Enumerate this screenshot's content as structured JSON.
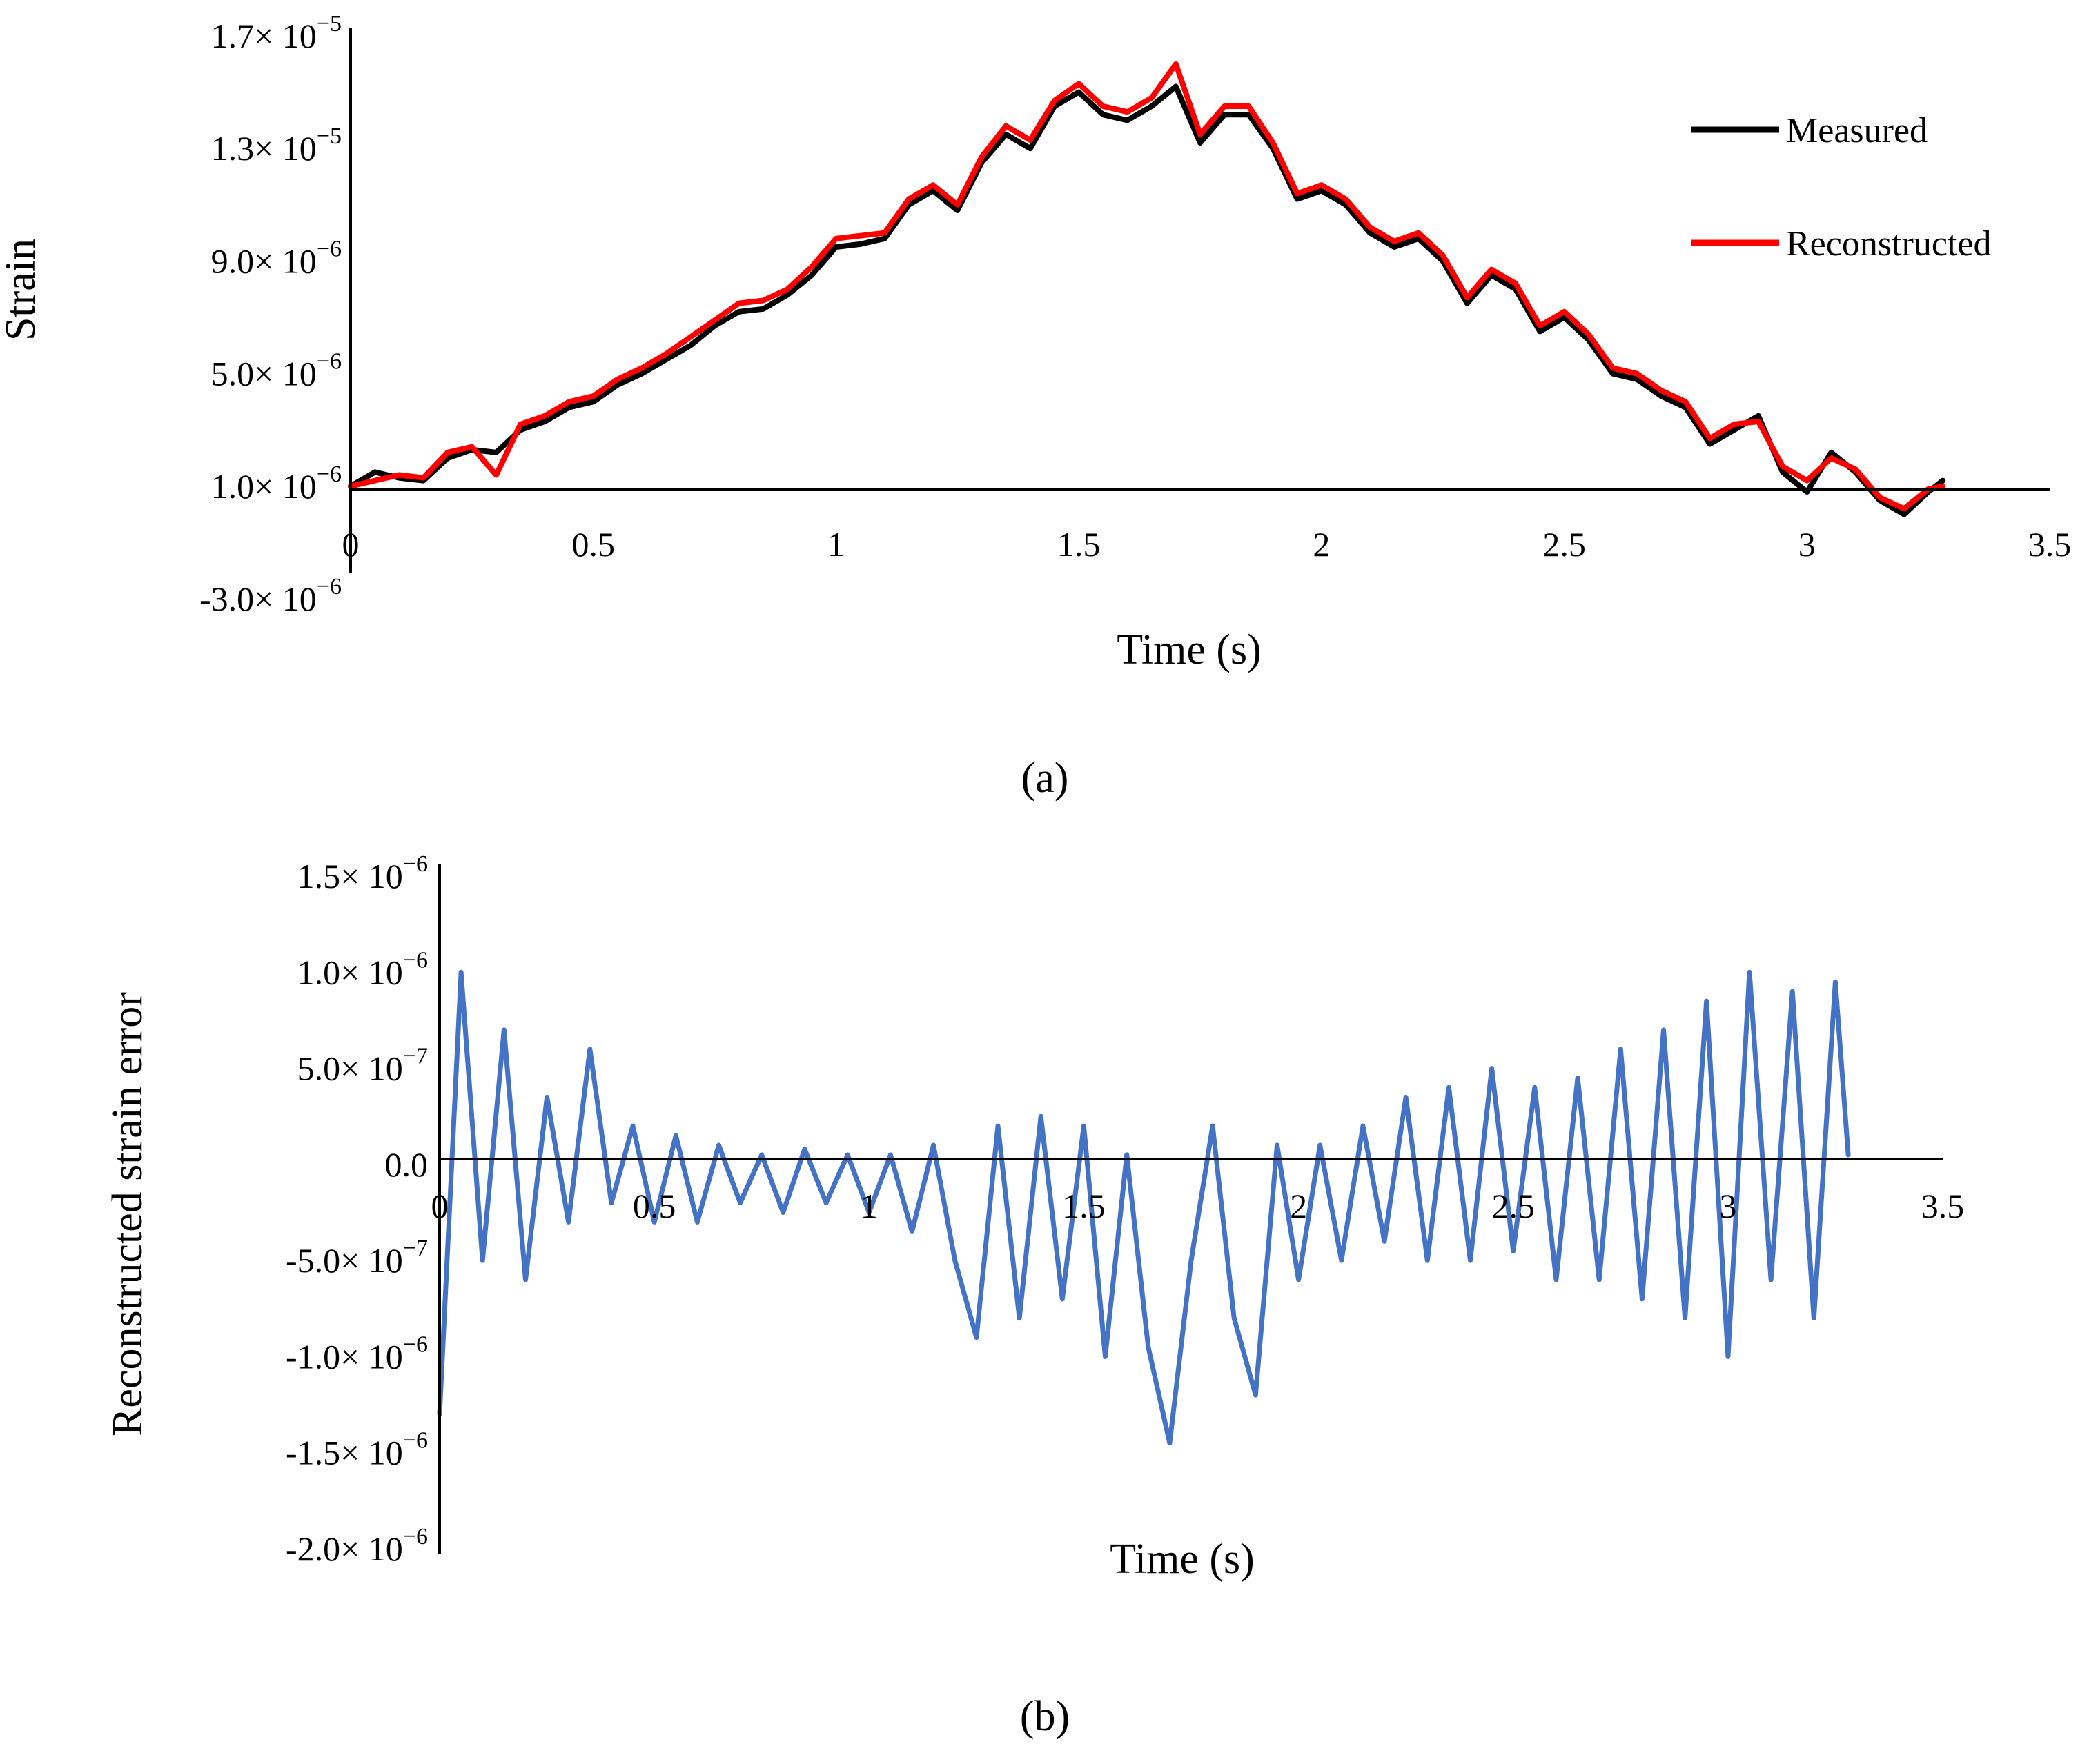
{
  "chart_data": [
    {
      "id": "a",
      "type": "line",
      "caption": "(a)",
      "title": "",
      "xlabel": "Time (s)",
      "ylabel": "Strain",
      "xlim": [
        0,
        3.5
      ],
      "ylim": [
        -3e-06,
        1.7e-05
      ],
      "x_ticks": [
        "0",
        "0.5",
        "1",
        "1.5",
        "2",
        "2.5",
        "3",
        "3.5"
      ],
      "y_ticks": [
        {
          "value": 1.7e-05,
          "mant": "1.7",
          "exp": "−5"
        },
        {
          "value": 1.3e-05,
          "mant": "1.3",
          "exp": "−5"
        },
        {
          "value": 9e-06,
          "mant": "9.0",
          "exp": "−6"
        },
        {
          "value": 5e-06,
          "mant": "5.0",
          "exp": "−6"
        },
        {
          "value": 1e-06,
          "mant": "1.0",
          "exp": "−6"
        },
        {
          "value": -3e-06,
          "mant": "-3.0",
          "exp": "−6"
        }
      ],
      "legend": {
        "position": "top-right",
        "entries": [
          "Measured",
          "Reconstructed"
        ]
      },
      "x": [
        0,
        0.05,
        0.1,
        0.15,
        0.2,
        0.25,
        0.3,
        0.35,
        0.4,
        0.45,
        0.5,
        0.55,
        0.6,
        0.65,
        0.7,
        0.75,
        0.8,
        0.85,
        0.9,
        0.95,
        1.0,
        1.05,
        1.1,
        1.15,
        1.2,
        1.25,
        1.3,
        1.35,
        1.4,
        1.45,
        1.5,
        1.55,
        1.6,
        1.65,
        1.7,
        1.75,
        1.8,
        1.85,
        1.9,
        1.95,
        2.0,
        2.05,
        2.1,
        2.15,
        2.2,
        2.25,
        2.3,
        2.35,
        2.4,
        2.45,
        2.5,
        2.55,
        2.6,
        2.65,
        2.7,
        2.75,
        2.8,
        2.85,
        2.9,
        2.95,
        3.0,
        3.05,
        3.1,
        3.15,
        3.2,
        3.25,
        3.28
      ],
      "series": [
        {
          "name": "Measured",
          "color": "#000000",
          "values": [
            1e-06,
            1.5e-06,
            1.3e-06,
            1.2e-06,
            2e-06,
            2.3e-06,
            2.2e-06,
            3e-06,
            3.3e-06,
            3.8e-06,
            4e-06,
            4.6e-06,
            5e-06,
            5.5e-06,
            6e-06,
            6.7e-06,
            7.2e-06,
            7.3e-06,
            7.8e-06,
            8.5e-06,
            9.5e-06,
            9.6e-06,
            9.8e-06,
            1.1e-05,
            1.15e-05,
            1.08e-05,
            1.25e-05,
            1.35e-05,
            1.3e-05,
            1.45e-05,
            1.5e-05,
            1.42e-05,
            1.4e-05,
            1.45e-05,
            1.52e-05,
            1.32e-05,
            1.42e-05,
            1.42e-05,
            1.3e-05,
            1.12e-05,
            1.15e-05,
            1.1e-05,
            1e-05,
            9.5e-06,
            9.8e-06,
            9e-06,
            7.5e-06,
            8.5e-06,
            8e-06,
            6.5e-06,
            7e-06,
            6.2e-06,
            5e-06,
            4.8e-06,
            4.2e-06,
            3.8e-06,
            2.5e-06,
            3e-06,
            3.5e-06,
            1.5e-06,
            8e-07,
            2.2e-06,
            1.5e-06,
            5e-07,
            0.0,
            8e-07,
            1.2e-06
          ]
        },
        {
          "name": "Reconstructed",
          "color": "#ff0000",
          "values": [
            1e-06,
            1.2e-06,
            1.4e-06,
            1.3e-06,
            2.2e-06,
            2.4e-06,
            1.4e-06,
            3.2e-06,
            3.5e-06,
            4e-06,
            4.2e-06,
            4.8e-06,
            5.2e-06,
            5.7e-06,
            6.3e-06,
            6.9e-06,
            7.5e-06,
            7.6e-06,
            8e-06,
            8.8e-06,
            9.8e-06,
            9.9e-06,
            1e-05,
            1.12e-05,
            1.17e-05,
            1.1e-05,
            1.27e-05,
            1.38e-05,
            1.33e-05,
            1.47e-05,
            1.53e-05,
            1.45e-05,
            1.43e-05,
            1.48e-05,
            1.6e-05,
            1.35e-05,
            1.45e-05,
            1.45e-05,
            1.32e-05,
            1.14e-05,
            1.17e-05,
            1.12e-05,
            1.02e-05,
            9.7e-06,
            1e-05,
            9.2e-06,
            7.7e-06,
            8.7e-06,
            8.2e-06,
            6.7e-06,
            7.2e-06,
            6.4e-06,
            5.2e-06,
            5e-06,
            4.4e-06,
            4e-06,
            2.7e-06,
            3.2e-06,
            3.3e-06,
            1.7e-06,
            1.2e-06,
            2e-06,
            1.6e-06,
            6e-07,
            2e-07,
            9e-07,
            1e-06
          ]
        }
      ]
    },
    {
      "id": "b",
      "type": "line",
      "caption": "(b)",
      "title": "",
      "xlabel": "Time (s)",
      "ylabel": "Reconstructed strain error",
      "xlim": [
        0,
        3.5
      ],
      "ylim": [
        -2e-06,
        1.5e-06
      ],
      "x_ticks": [
        "0",
        "0.5",
        "1",
        "1.5",
        "2",
        "2.5",
        "3",
        "3.5"
      ],
      "y_ticks": [
        {
          "value": 1.5e-06,
          "mant": "1.5",
          "exp": "−6"
        },
        {
          "value": 1e-06,
          "mant": "1.0",
          "exp": "−6"
        },
        {
          "value": 5e-07,
          "mant": "5.0",
          "exp": "−7"
        },
        {
          "value": 0.0,
          "mant": "0.0",
          "exp": ""
        },
        {
          "value": -5e-07,
          "mant": "-5.0",
          "exp": "−7"
        },
        {
          "value": -1e-06,
          "mant": "-1.0",
          "exp": "−6"
        },
        {
          "value": -1.5e-06,
          "mant": "-1.5",
          "exp": "−6"
        },
        {
          "value": -2e-06,
          "mant": "-2.0",
          "exp": "−6"
        }
      ],
      "x": [
        0,
        0.05,
        0.1,
        0.15,
        0.2,
        0.25,
        0.3,
        0.35,
        0.4,
        0.45,
        0.5,
        0.55,
        0.6,
        0.65,
        0.7,
        0.75,
        0.8,
        0.85,
        0.9,
        0.95,
        1.0,
        1.05,
        1.1,
        1.15,
        1.2,
        1.25,
        1.3,
        1.35,
        1.4,
        1.45,
        1.5,
        1.55,
        1.6,
        1.65,
        1.7,
        1.75,
        1.8,
        1.85,
        1.9,
        1.95,
        2.0,
        2.05,
        2.1,
        2.15,
        2.2,
        2.25,
        2.3,
        2.35,
        2.4,
        2.45,
        2.5,
        2.55,
        2.6,
        2.65,
        2.7,
        2.75,
        2.8,
        2.85,
        2.9,
        2.95,
        3.0,
        3.05,
        3.1,
        3.15,
        3.2,
        3.25,
        3.28
      ],
      "series": [
        {
          "name": "Reconstructed strain error",
          "color": "#4472c4",
          "values": [
            -1.3e-06,
            1e-06,
            -5e-07,
            7e-07,
            -6e-07,
            3.5e-07,
            -3e-07,
            6e-07,
            -2e-07,
            2e-07,
            -3e-07,
            1.5e-07,
            -3e-07,
            1e-07,
            -2e-07,
            5e-08,
            -2.5e-07,
            8e-08,
            -2e-07,
            5e-08,
            -2.5e-07,
            5e-08,
            -3.5e-07,
            1e-07,
            -5e-07,
            -9e-07,
            2e-07,
            -8e-07,
            2.5e-07,
            -7e-07,
            2e-07,
            -1e-06,
            5e-08,
            -9.5e-07,
            -1.45e-06,
            -5e-07,
            2e-07,
            -8e-07,
            -1.2e-06,
            1e-07,
            -6e-07,
            1e-07,
            -5e-07,
            2e-07,
            -4e-07,
            3.5e-07,
            -5e-07,
            4e-07,
            -5e-07,
            5e-07,
            -4.5e-07,
            4e-07,
            -6e-07,
            4.5e-07,
            -6e-07,
            6e-07,
            -7e-07,
            7e-07,
            -8e-07,
            8.5e-07,
            -1e-06,
            1e-06,
            -6e-07,
            9e-07,
            -8e-07,
            9.5e-07,
            5e-08
          ]
        }
      ]
    }
  ]
}
